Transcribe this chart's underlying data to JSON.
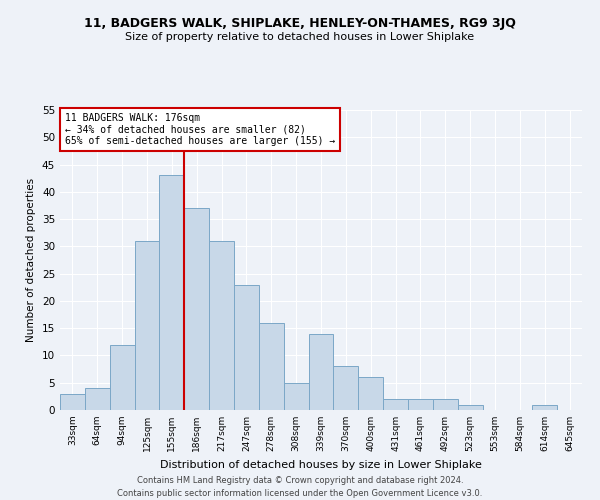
{
  "title1": "11, BADGERS WALK, SHIPLAKE, HENLEY-ON-THAMES, RG9 3JQ",
  "title2": "Size of property relative to detached houses in Lower Shiplake",
  "xlabel": "Distribution of detached houses by size in Lower Shiplake",
  "ylabel": "Number of detached properties",
  "categories": [
    "33sqm",
    "64sqm",
    "94sqm",
    "125sqm",
    "155sqm",
    "186sqm",
    "217sqm",
    "247sqm",
    "278sqm",
    "308sqm",
    "339sqm",
    "370sqm",
    "400sqm",
    "431sqm",
    "461sqm",
    "492sqm",
    "523sqm",
    "553sqm",
    "584sqm",
    "614sqm",
    "645sqm"
  ],
  "values": [
    3,
    4,
    12,
    31,
    43,
    37,
    31,
    23,
    16,
    5,
    14,
    8,
    6,
    2,
    2,
    2,
    1,
    0,
    0,
    1,
    0
  ],
  "bar_color": "#c8d8e8",
  "bar_edge_color": "#7ba7c7",
  "vline_x": 4.5,
  "annotation_title": "11 BADGERS WALK: 176sqm",
  "annotation_line1": "← 34% of detached houses are smaller (82)",
  "annotation_line2": "65% of semi-detached houses are larger (155) →",
  "annotation_box_color": "#ffffff",
  "annotation_box_edge": "#cc0000",
  "vline_color": "#cc0000",
  "background_color": "#eef2f8",
  "grid_color": "#ffffff",
  "footer1": "Contains HM Land Registry data © Crown copyright and database right 2024.",
  "footer2": "Contains public sector information licensed under the Open Government Licence v3.0.",
  "ylim": [
    0,
    55
  ],
  "yticks": [
    0,
    5,
    10,
    15,
    20,
    25,
    30,
    35,
    40,
    45,
    50,
    55
  ]
}
